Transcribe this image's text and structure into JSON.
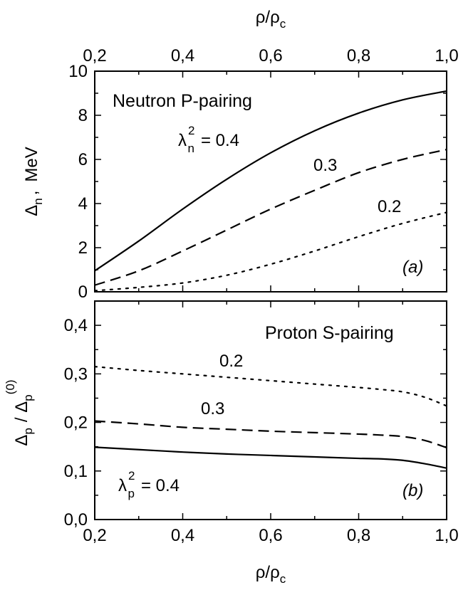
{
  "chart_data": [
    {
      "type": "line",
      "panel_tag": "(a)",
      "title": "Neutron P-pairing",
      "xlabel_main": "ρ/ρ",
      "xlabel_sub": "c",
      "ylabel_parts": [
        "Δ",
        "n",
        ",",
        "MeV"
      ],
      "xlim": [
        0.2,
        1.0
      ],
      "ylim": [
        0,
        10
      ],
      "x_ticks": [
        "0,2",
        "0,4",
        "0,6",
        "0,8",
        "1,0"
      ],
      "y_ticks": [
        "0",
        "2",
        "4",
        "6",
        "8",
        "10"
      ],
      "legend_symbol": "λ",
      "legend_sub": "n",
      "legend_sup": "2",
      "legend_eq": "= 0.4",
      "series": [
        {
          "name": "0.4",
          "label": "0.4",
          "style": "solid",
          "x": [
            0.2,
            0.3,
            0.4,
            0.5,
            0.6,
            0.7,
            0.8,
            0.9,
            1.0
          ],
          "values": [
            0.95,
            2.3,
            3.75,
            5.1,
            6.3,
            7.3,
            8.1,
            8.7,
            9.1
          ]
        },
        {
          "name": "0.3",
          "label": "0.3",
          "style": "dashed",
          "x": [
            0.2,
            0.3,
            0.4,
            0.5,
            0.6,
            0.7,
            0.8,
            0.9,
            1.0
          ],
          "values": [
            0.3,
            0.95,
            1.85,
            2.8,
            3.75,
            4.6,
            5.4,
            6.0,
            6.45
          ]
        },
        {
          "name": "0.2",
          "label": "0.2",
          "style": "dotted",
          "x": [
            0.2,
            0.3,
            0.4,
            0.5,
            0.6,
            0.7,
            0.8,
            0.9,
            1.0
          ],
          "values": [
            0.05,
            0.2,
            0.4,
            0.75,
            1.25,
            1.85,
            2.5,
            3.1,
            3.6
          ]
        }
      ]
    },
    {
      "type": "line",
      "panel_tag": "(b)",
      "title": "Proton S-pairing",
      "xlabel_main": "ρ/ρ",
      "xlabel_sub": "c",
      "ylabel_parts": [
        "Δ",
        "p",
        "/ Δ",
        "p",
        "(0)"
      ],
      "xlim": [
        0.2,
        1.0
      ],
      "ylim": [
        0,
        0.45
      ],
      "x_ticks": [
        "0,2",
        "0,4",
        "0,6",
        "0,8",
        "1,0"
      ],
      "y_ticks": [
        "0,0",
        "0,1",
        "0,2",
        "0,3",
        "0,4"
      ],
      "legend_symbol": "λ",
      "legend_sub": "p",
      "legend_sup": "2",
      "legend_eq": "= 0.4",
      "series": [
        {
          "name": "0.4",
          "label": "0.4",
          "style": "solid",
          "x": [
            0.2,
            0.3,
            0.4,
            0.5,
            0.6,
            0.7,
            0.8,
            0.85,
            0.9,
            0.95,
            1.0
          ],
          "values": [
            0.149,
            0.144,
            0.139,
            0.135,
            0.132,
            0.129,
            0.126,
            0.125,
            0.122,
            0.115,
            0.106
          ]
        },
        {
          "name": "0.3",
          "label": "0.3",
          "style": "dashed",
          "x": [
            0.2,
            0.3,
            0.4,
            0.5,
            0.6,
            0.7,
            0.8,
            0.85,
            0.9,
            0.95,
            1.0
          ],
          "values": [
            0.203,
            0.197,
            0.19,
            0.186,
            0.182,
            0.179,
            0.176,
            0.174,
            0.171,
            0.163,
            0.148
          ]
        },
        {
          "name": "0.2",
          "label": "0.2",
          "style": "dotted",
          "x": [
            0.2,
            0.3,
            0.4,
            0.5,
            0.6,
            0.7,
            0.8,
            0.85,
            0.9,
            0.95,
            1.0
          ],
          "values": [
            0.315,
            0.307,
            0.3,
            0.293,
            0.286,
            0.279,
            0.272,
            0.268,
            0.263,
            0.252,
            0.234
          ]
        }
      ]
    }
  ]
}
